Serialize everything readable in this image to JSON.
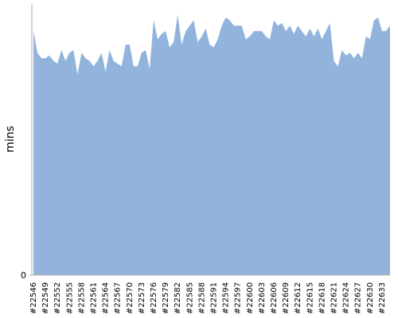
{
  "chart_data": {
    "type": "area",
    "y_label": "mins",
    "color": "#92b4dc",
    "ylim": [
      0,
      100
    ],
    "yticks": [
      0
    ],
    "categories": [
      "#22546",
      null,
      null,
      "#22549",
      null,
      null,
      "#22552",
      null,
      null,
      "#22555",
      null,
      null,
      "#22558",
      null,
      null,
      "#22561",
      null,
      null,
      "#22564",
      null,
      null,
      "#22567",
      null,
      null,
      "#22570",
      null,
      null,
      "#22573",
      null,
      null,
      "#22576",
      null,
      null,
      "#22579",
      null,
      null,
      "#22582",
      null,
      null,
      "#22585",
      null,
      null,
      "#22588",
      null,
      null,
      "#22591",
      null,
      null,
      "#22594",
      null,
      null,
      "#22597",
      null,
      null,
      "#22600",
      null,
      null,
      "#22603",
      null,
      null,
      "#22606",
      null,
      null,
      "#22609",
      null,
      null,
      "#22612",
      null,
      null,
      "#22615",
      null,
      null,
      "#22618",
      null,
      null,
      "#22621",
      null,
      null,
      "#22624",
      null,
      null,
      "#22627",
      null,
      null,
      "#22630",
      null,
      null,
      "#22633",
      null,
      null
    ],
    "values": [
      90,
      82,
      80,
      80,
      81,
      79,
      78,
      83,
      79,
      82,
      83,
      74,
      82,
      80,
      79,
      77,
      79,
      82,
      75,
      83,
      79,
      78,
      77,
      85,
      85,
      77,
      77,
      82,
      83,
      76,
      94,
      87,
      89,
      90,
      84,
      86,
      96,
      85,
      90,
      92,
      94,
      86,
      88,
      91,
      85,
      84,
      87,
      92,
      95,
      94,
      92,
      92,
      92,
      87,
      88,
      90,
      90,
      90,
      88,
      87,
      94,
      92,
      93,
      90,
      92,
      89,
      92,
      90,
      88,
      91,
      88,
      91,
      87,
      90,
      93,
      79,
      77,
      83,
      81,
      82,
      80,
      82,
      80,
      88,
      87,
      94,
      95,
      90,
      90,
      92
    ]
  }
}
